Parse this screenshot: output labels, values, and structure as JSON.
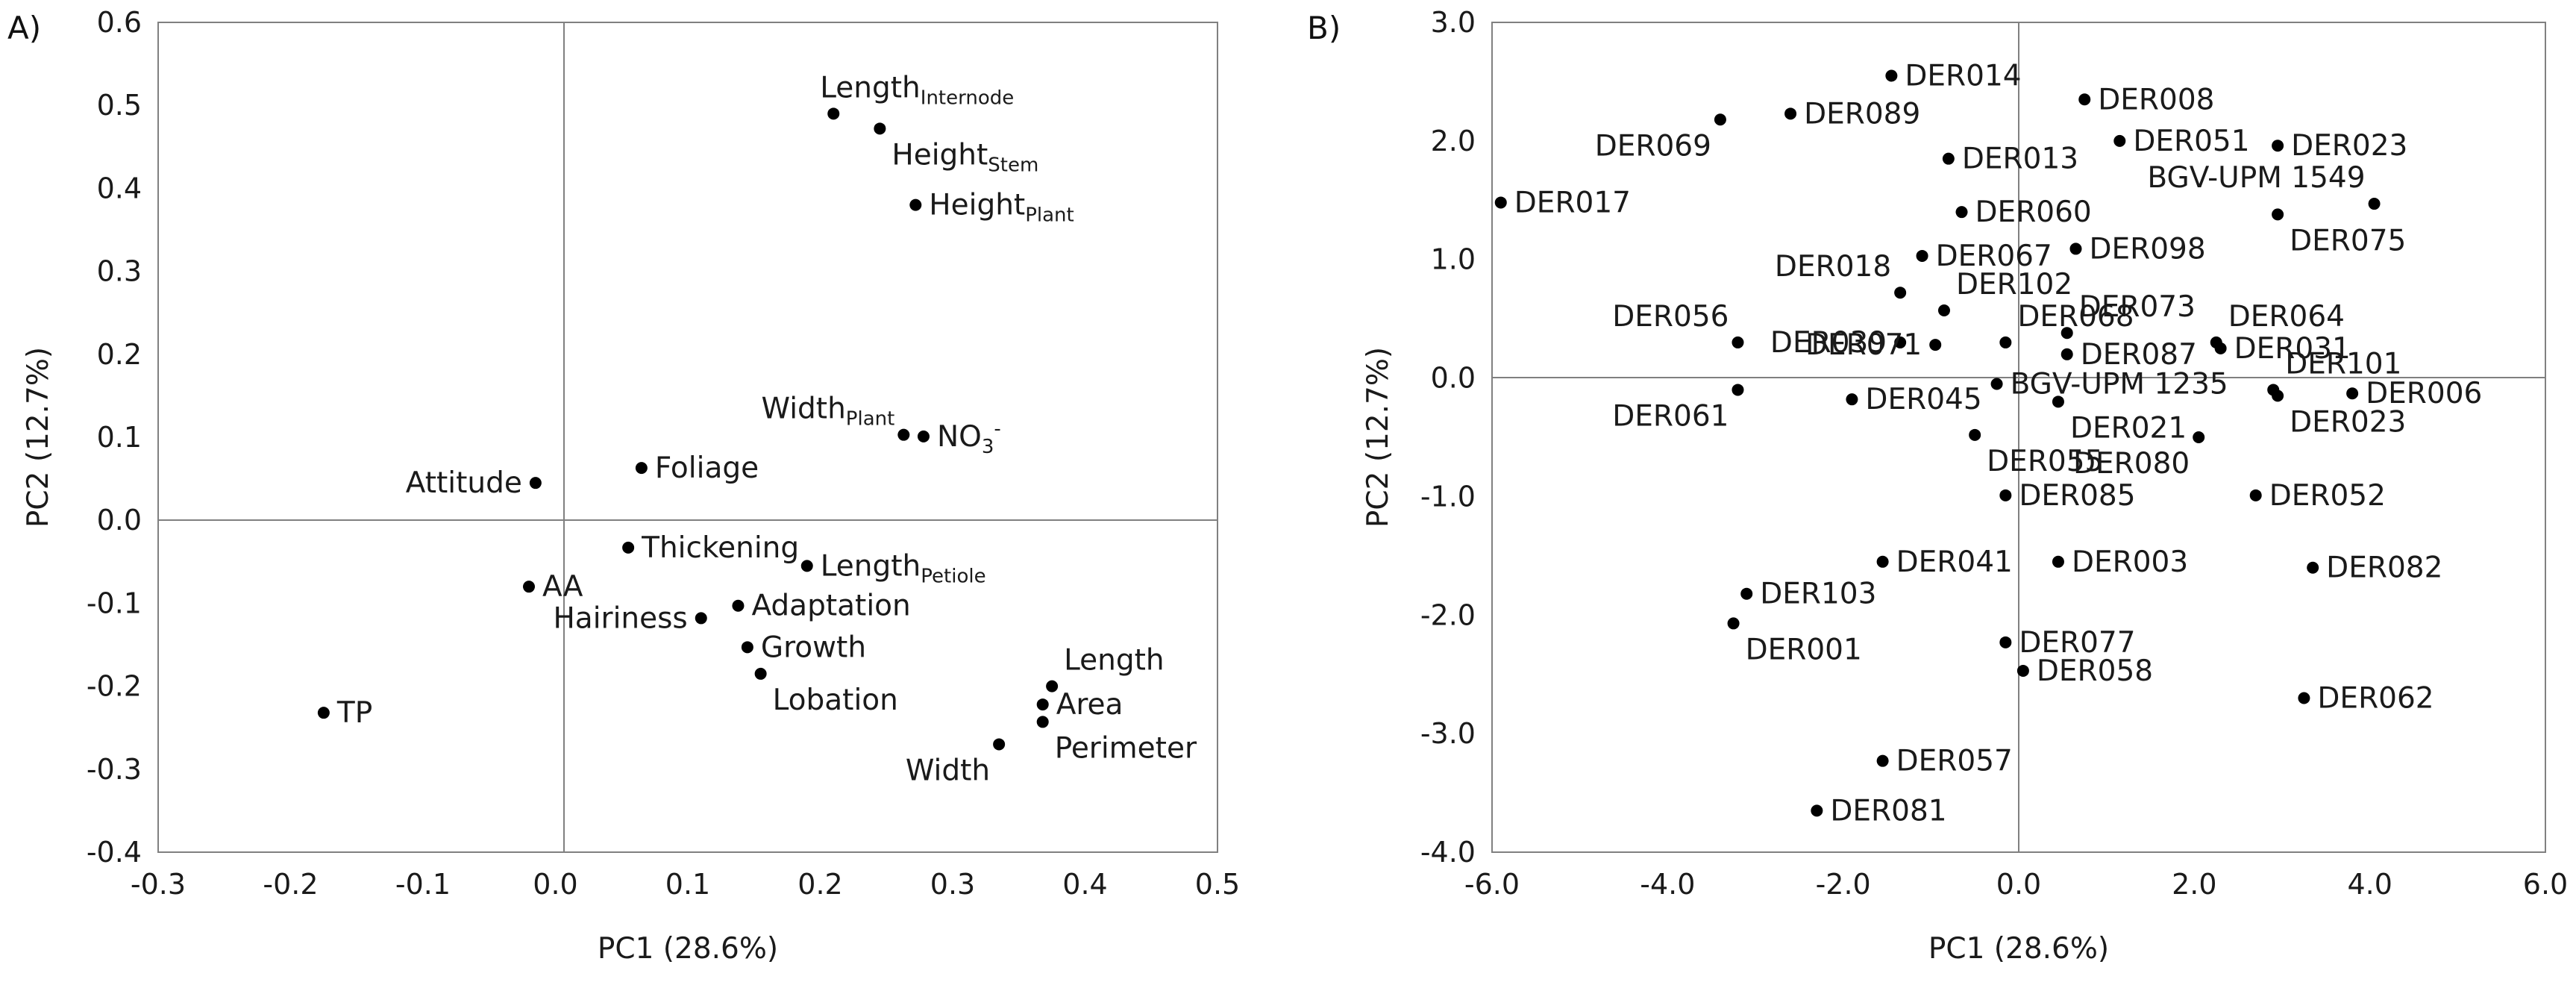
{
  "chart_data": [
    {
      "type": "scatter",
      "panel": "A)",
      "xlabel": "PC1 (28.6%)",
      "ylabel": "PC2 (12.7%)",
      "xlim": [
        -0.3,
        0.5
      ],
      "ylim": [
        -0.4,
        0.6
      ],
      "xticks": [
        "-0.3",
        "-0.2",
        "-0.1",
        "0.0",
        "0.1",
        "0.2",
        "0.3",
        "0.4",
        "0.5"
      ],
      "yticks": [
        "-0.4",
        "-0.3",
        "-0.2",
        "-0.1",
        "0.0",
        "0.1",
        "0.2",
        "0.3",
        "0.4",
        "0.5",
        "0.6"
      ],
      "points": [
        {
          "label": "Length",
          "sub": "Internode",
          "sup": "",
          "x": 0.21,
          "y": 0.49,
          "pos": "above"
        },
        {
          "label": "Height",
          "sub": "Stem",
          "sup": "",
          "x": 0.245,
          "y": 0.472,
          "pos": "below-right"
        },
        {
          "label": "Height",
          "sub": "Plant",
          "sup": "",
          "x": 0.272,
          "y": 0.38,
          "pos": "right"
        },
        {
          "label": "Width",
          "sub": "Plant",
          "sup": "",
          "x": 0.263,
          "y": 0.103,
          "pos": "above-left"
        },
        {
          "label": "NO",
          "sub": "3",
          "sup": "-",
          "x": 0.278,
          "y": 0.101,
          "pos": "right"
        },
        {
          "label": "Foliage",
          "sub": "",
          "sup": "",
          "x": 0.065,
          "y": 0.063,
          "pos": "right"
        },
        {
          "label": "Attitude",
          "sub": "",
          "sup": "",
          "x": -0.015,
          "y": 0.045,
          "pos": "left"
        },
        {
          "label": "Thickening",
          "sub": "",
          "sup": "",
          "x": 0.055,
          "y": -0.033,
          "pos": "right"
        },
        {
          "label": "Length",
          "sub": "Petiole",
          "sup": "",
          "x": 0.19,
          "y": -0.055,
          "pos": "right"
        },
        {
          "label": "AA",
          "sub": "",
          "sup": "",
          "x": -0.02,
          "y": -0.08,
          "pos": "right"
        },
        {
          "label": "Adaptation",
          "sub": "",
          "sup": "",
          "x": 0.138,
          "y": -0.103,
          "pos": "right"
        },
        {
          "label": "Hairiness",
          "sub": "",
          "sup": "",
          "x": 0.11,
          "y": -0.118,
          "pos": "left"
        },
        {
          "label": "Growth",
          "sub": "",
          "sup": "",
          "x": 0.145,
          "y": -0.153,
          "pos": "right"
        },
        {
          "label": "Lobation",
          "sub": "",
          "sup": "",
          "x": 0.155,
          "y": -0.185,
          "pos": "below-right"
        },
        {
          "label": "Length",
          "sub": "",
          "sup": "",
          "x": 0.375,
          "y": -0.2,
          "pos": "above-right"
        },
        {
          "label": "Area",
          "sub": "",
          "sup": "",
          "x": 0.368,
          "y": -0.222,
          "pos": "right"
        },
        {
          "label": "Perimeter",
          "sub": "",
          "sup": "",
          "x": 0.368,
          "y": -0.243,
          "pos": "below-right"
        },
        {
          "label": "Width",
          "sub": "",
          "sup": "",
          "x": 0.335,
          "y": -0.27,
          "pos": "below-left"
        },
        {
          "label": "TP",
          "sub": "",
          "sup": "",
          "x": -0.175,
          "y": -0.232,
          "pos": "right"
        }
      ]
    },
    {
      "type": "scatter",
      "panel": "B)",
      "xlabel": "PC1 (28.6%)",
      "ylabel": "PC2 (12.7%)",
      "xlim": [
        -6.0,
        6.0
      ],
      "ylim": [
        -4.0,
        3.0
      ],
      "xticks": [
        "-6.0",
        "-4.0",
        "-2.0",
        "0.0",
        "2.0",
        "4.0",
        "6.0"
      ],
      "yticks": [
        "-4.0",
        "-3.0",
        "-2.0",
        "-1.0",
        "0.0",
        "1.0",
        "2.0",
        "3.0"
      ],
      "points": [
        {
          "label": "DER014",
          "x": -1.45,
          "y": 2.55,
          "pos": "right"
        },
        {
          "label": "DER008",
          "x": 0.75,
          "y": 2.35,
          "pos": "right"
        },
        {
          "label": "DER089",
          "x": -2.6,
          "y": 2.23,
          "pos": "right"
        },
        {
          "label": "DER069",
          "x": -3.4,
          "y": 2.18,
          "pos": "below-left"
        },
        {
          "label": "DER051",
          "x": 1.15,
          "y": 2.0,
          "pos": "right"
        },
        {
          "label": "DER023",
          "x": 2.95,
          "y": 1.96,
          "pos": "right"
        },
        {
          "label": "DER013",
          "x": -0.8,
          "y": 1.85,
          "pos": "right"
        },
        {
          "label": "BGV-UPM 1549",
          "x": 4.05,
          "y": 1.47,
          "pos": "above-left"
        },
        {
          "label": "DER017",
          "x": -5.9,
          "y": 1.48,
          "pos": "right"
        },
        {
          "label": "DER075",
          "x": 2.95,
          "y": 1.38,
          "pos": "below-right"
        },
        {
          "label": "DER060",
          "x": -0.65,
          "y": 1.4,
          "pos": "right"
        },
        {
          "label": "DER098",
          "x": 0.65,
          "y": 1.09,
          "pos": "right"
        },
        {
          "label": "DER067",
          "x": -1.1,
          "y": 1.03,
          "pos": "right"
        },
        {
          "label": "DER018",
          "x": -1.35,
          "y": 0.72,
          "pos": "above-left"
        },
        {
          "label": "DER102",
          "x": -0.85,
          "y": 0.57,
          "pos": "above-right"
        },
        {
          "label": "DER073",
          "x": 0.55,
          "y": 0.38,
          "pos": "above-right"
        },
        {
          "label": "DER064",
          "x": 2.25,
          "y": 0.3,
          "pos": "above-right"
        },
        {
          "label": "DER068",
          "x": -0.15,
          "y": 0.3,
          "pos": "above-right"
        },
        {
          "label": "DER056",
          "x": -3.2,
          "y": 0.3,
          "pos": "above-left"
        },
        {
          "label": "DER039",
          "x": -1.35,
          "y": 0.3,
          "pos": "left"
        },
        {
          "label": "DER071",
          "x": -0.95,
          "y": 0.28,
          "pos": "left"
        },
        {
          "label": "DER031",
          "x": 2.3,
          "y": 0.25,
          "pos": "right"
        },
        {
          "label": "DER087",
          "x": 0.55,
          "y": 0.2,
          "pos": "right"
        },
        {
          "label": "DER101",
          "x": 2.9,
          "y": -0.1,
          "pos": "above-right"
        },
        {
          "label": "BGV-UPM 1235",
          "x": -0.25,
          "y": -0.05,
          "pos": "right"
        },
        {
          "label": "DER006",
          "x": 3.8,
          "y": -0.13,
          "pos": "right"
        },
        {
          "label": "DER061",
          "x": -3.2,
          "y": -0.1,
          "pos": "below-left"
        },
        {
          "label": "DER045",
          "x": -1.9,
          "y": -0.18,
          "pos": "right"
        },
        {
          "label": "DER021",
          "x": 0.45,
          "y": -0.2,
          "pos": "below-right"
        },
        {
          "label": "DER023",
          "x": 2.95,
          "y": -0.15,
          "pos": "below-right"
        },
        {
          "label": "DER055",
          "x": -0.5,
          "y": -0.48,
          "pos": "below-right"
        },
        {
          "label": "DER080",
          "x": 2.05,
          "y": -0.5,
          "pos": "below-left"
        },
        {
          "label": "DER085",
          "x": -0.15,
          "y": -0.99,
          "pos": "right"
        },
        {
          "label": "DER052",
          "x": 2.7,
          "y": -0.99,
          "pos": "right"
        },
        {
          "label": "DER041",
          "x": -1.55,
          "y": -1.55,
          "pos": "right"
        },
        {
          "label": "DER003",
          "x": 0.45,
          "y": -1.55,
          "pos": "right"
        },
        {
          "label": "DER082",
          "x": 3.35,
          "y": -1.6,
          "pos": "right"
        },
        {
          "label": "DER103",
          "x": -3.1,
          "y": -1.82,
          "pos": "right"
        },
        {
          "label": "DER001",
          "x": -3.25,
          "y": -2.07,
          "pos": "below-right"
        },
        {
          "label": "DER077",
          "x": -0.15,
          "y": -2.23,
          "pos": "right"
        },
        {
          "label": "DER058",
          "x": 0.05,
          "y": -2.47,
          "pos": "right"
        },
        {
          "label": "DER062",
          "x": 3.25,
          "y": -2.7,
          "pos": "right"
        },
        {
          "label": "DER057",
          "x": -1.55,
          "y": -3.23,
          "pos": "right"
        },
        {
          "label": "DER081",
          "x": -2.3,
          "y": -3.65,
          "pos": "right"
        }
      ]
    }
  ]
}
